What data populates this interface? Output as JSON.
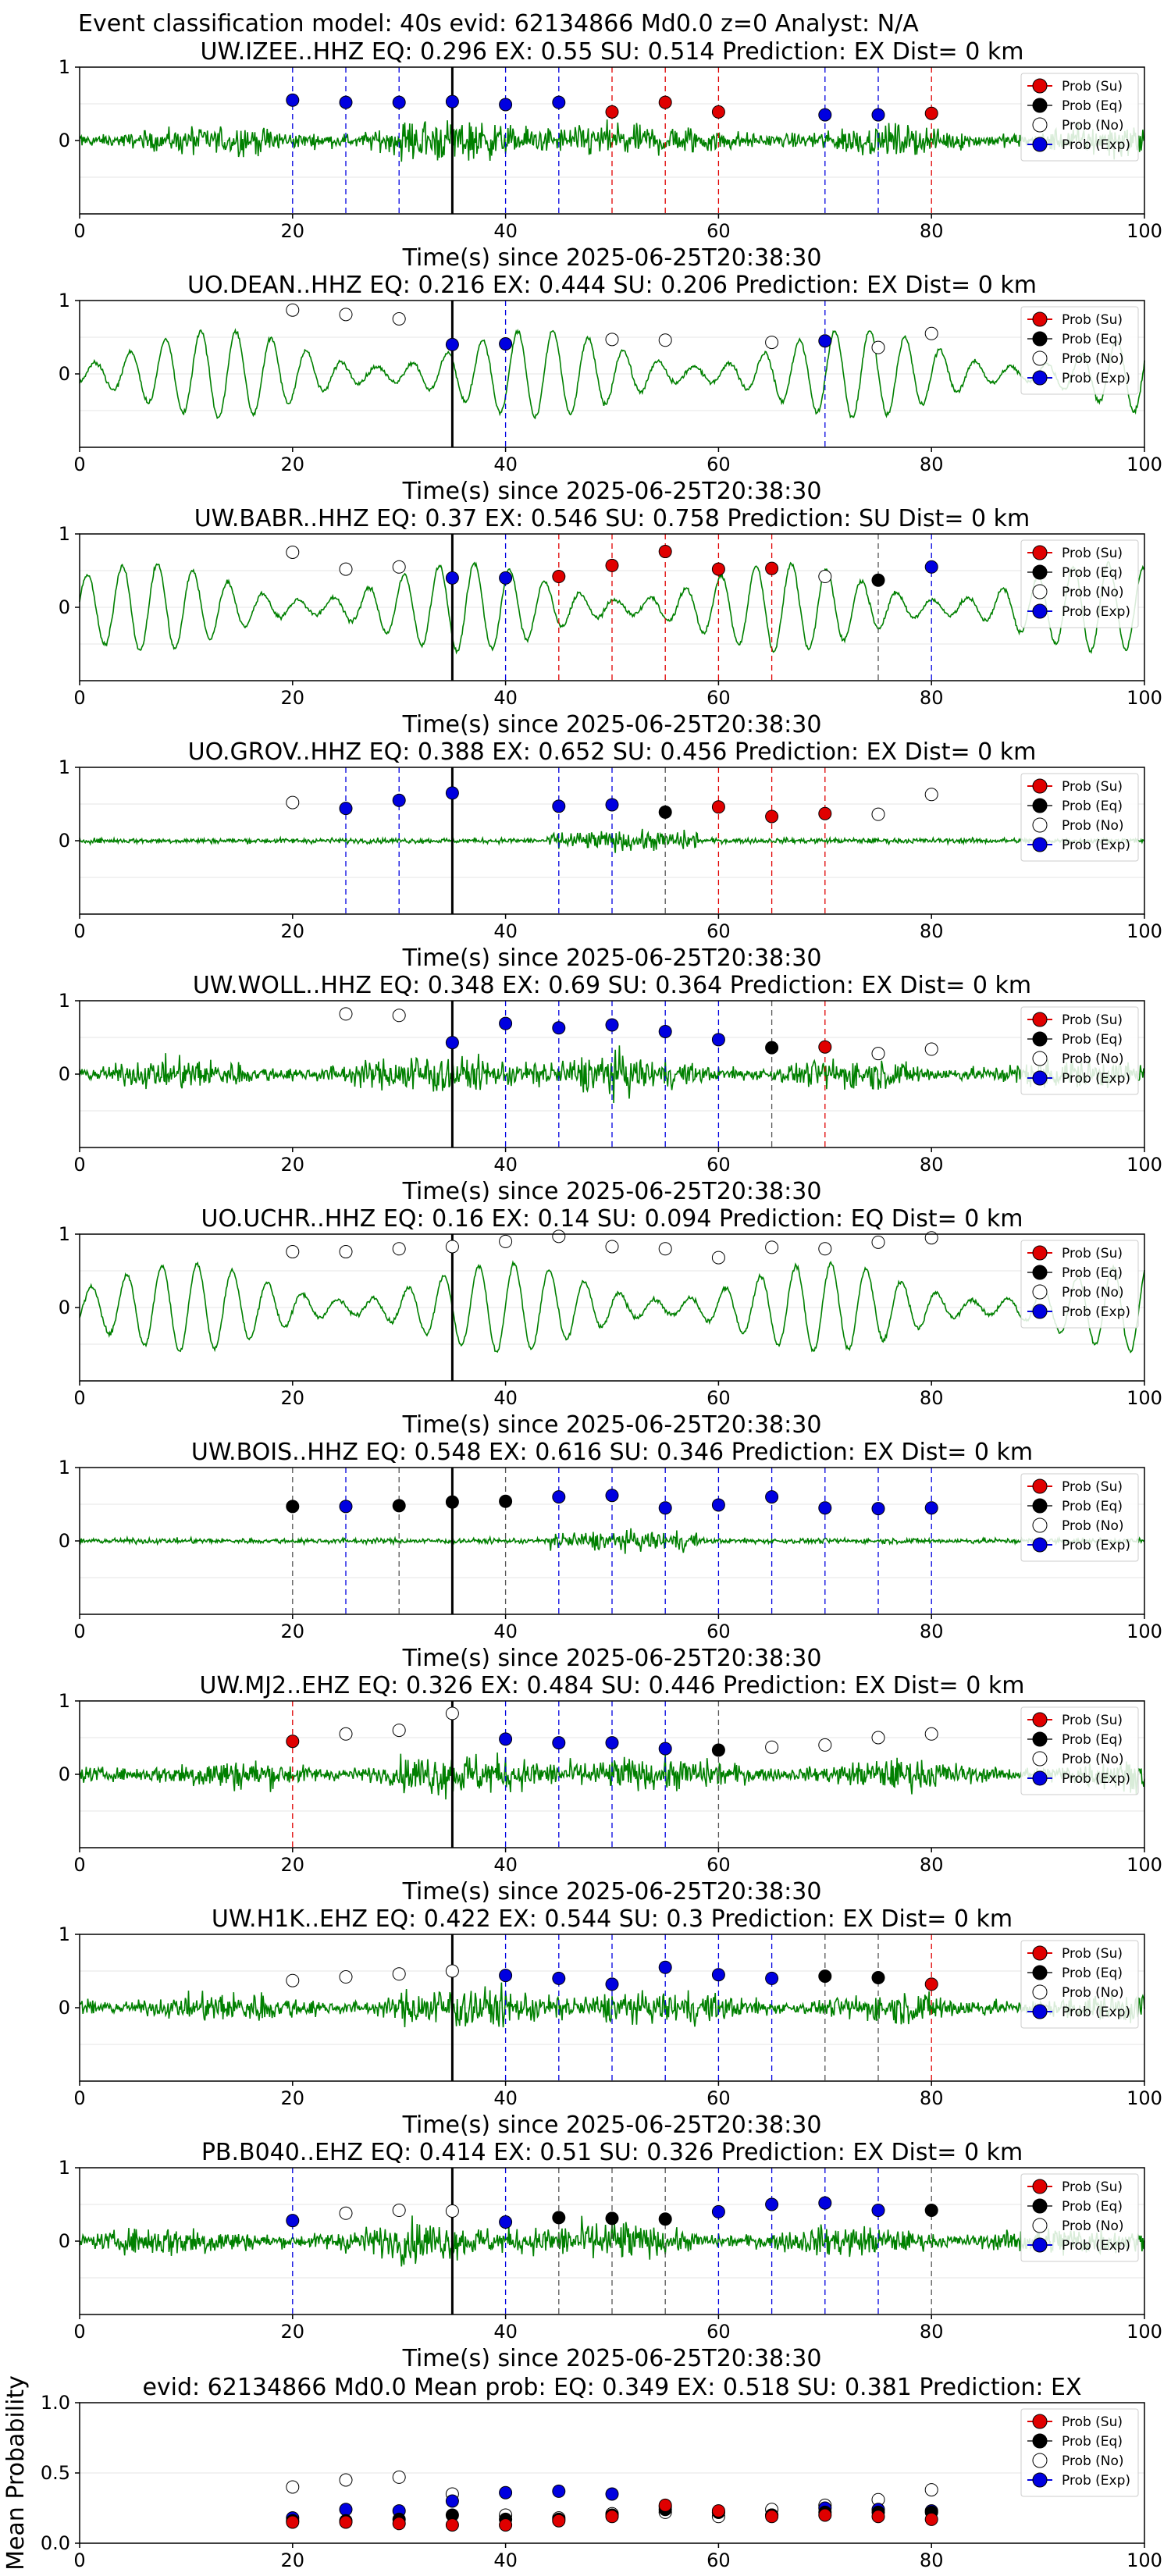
{
  "suptitle": "Event classification model: 40s evid: 62134866 Md0.0 z=0 Analyst: N/A",
  "colors": {
    "su": "#e00000",
    "eq": "#000000",
    "no": "#ffffff",
    "exp": "#0000e0",
    "trace": "#008000"
  },
  "legend": [
    "Prob (Su)",
    "Prob (Eq)",
    "Prob (No)",
    "Prob (Exp)"
  ],
  "chart_data": [
    {
      "type": "line",
      "station": "UW.IZEE..HHZ",
      "title": "UW.IZEE..HHZ   EQ: 0.296   EX: 0.55   SU: 0.514    Prediction: EX     Dist= 0 km",
      "xlabel": "Time(s) since 2025-06-25T20:38:30",
      "xlim": [
        0,
        100
      ],
      "ylim": [
        -1,
        1
      ],
      "xticks": [
        "0",
        "20",
        "40",
        "60",
        "80",
        "100"
      ],
      "yticks": [
        "1",
        "0"
      ],
      "grid": true,
      "legend_position": "top-right",
      "onset_line_x": 35,
      "trace_style": "noisy",
      "points": [
        {
          "x": 20,
          "y": 0.55,
          "cls": "exp"
        },
        {
          "x": 25,
          "y": 0.52,
          "cls": "exp"
        },
        {
          "x": 30,
          "y": 0.52,
          "cls": "exp"
        },
        {
          "x": 35,
          "y": 0.53,
          "cls": "exp"
        },
        {
          "x": 40,
          "y": 0.49,
          "cls": "exp"
        },
        {
          "x": 45,
          "y": 0.52,
          "cls": "exp"
        },
        {
          "x": 50,
          "y": 0.39,
          "cls": "su"
        },
        {
          "x": 55,
          "y": 0.52,
          "cls": "su"
        },
        {
          "x": 60,
          "y": 0.39,
          "cls": "su"
        },
        {
          "x": 70,
          "y": 0.35,
          "cls": "exp"
        },
        {
          "x": 75,
          "y": 0.35,
          "cls": "exp"
        },
        {
          "x": 80,
          "y": 0.37,
          "cls": "su"
        }
      ]
    },
    {
      "type": "line",
      "station": "UO.DEAN..HHZ",
      "title": "UO.DEAN..HHZ   EQ: 0.216   EX: 0.444   SU: 0.206    Prediction: EX     Dist= 0 km",
      "xlabel": "Time(s) since 2025-06-25T20:38:30",
      "xlim": [
        0,
        100
      ],
      "ylim": [
        -1,
        1
      ],
      "xticks": [
        "0",
        "20",
        "40",
        "60",
        "80",
        "100"
      ],
      "yticks": [
        "1",
        "0"
      ],
      "grid": true,
      "legend_position": "top-right",
      "onset_line_x": 35,
      "trace_style": "oscillating",
      "points": [
        {
          "x": 20,
          "y": 0.87,
          "cls": "no"
        },
        {
          "x": 25,
          "y": 0.81,
          "cls": "no"
        },
        {
          "x": 30,
          "y": 0.75,
          "cls": "no"
        },
        {
          "x": 35,
          "y": 0.4,
          "cls": "exp"
        },
        {
          "x": 40,
          "y": 0.41,
          "cls": "exp"
        },
        {
          "x": 50,
          "y": 0.47,
          "cls": "no"
        },
        {
          "x": 55,
          "y": 0.46,
          "cls": "no"
        },
        {
          "x": 65,
          "y": 0.43,
          "cls": "no"
        },
        {
          "x": 70,
          "y": 0.45,
          "cls": "exp"
        },
        {
          "x": 75,
          "y": 0.36,
          "cls": "no"
        },
        {
          "x": 80,
          "y": 0.55,
          "cls": "no"
        }
      ]
    },
    {
      "type": "line",
      "station": "UW.BABR..HHZ",
      "title": "UW.BABR..HHZ   EQ: 0.37   EX: 0.546   SU: 0.758    Prediction: SU     Dist= 0 km",
      "xlabel": "Time(s) since 2025-06-25T20:38:30",
      "xlim": [
        0,
        100
      ],
      "ylim": [
        -1,
        1
      ],
      "xticks": [
        "0",
        "20",
        "40",
        "60",
        "80",
        "100"
      ],
      "yticks": [
        "1",
        "0"
      ],
      "grid": true,
      "legend_position": "top-right",
      "onset_line_x": 35,
      "trace_style": "oscillating",
      "points": [
        {
          "x": 20,
          "y": 0.75,
          "cls": "no"
        },
        {
          "x": 25,
          "y": 0.52,
          "cls": "no"
        },
        {
          "x": 30,
          "y": 0.55,
          "cls": "no"
        },
        {
          "x": 35,
          "y": 0.4,
          "cls": "exp"
        },
        {
          "x": 40,
          "y": 0.4,
          "cls": "exp"
        },
        {
          "x": 45,
          "y": 0.42,
          "cls": "su"
        },
        {
          "x": 50,
          "y": 0.57,
          "cls": "su"
        },
        {
          "x": 55,
          "y": 0.76,
          "cls": "su"
        },
        {
          "x": 60,
          "y": 0.52,
          "cls": "su"
        },
        {
          "x": 65,
          "y": 0.53,
          "cls": "su"
        },
        {
          "x": 70,
          "y": 0.42,
          "cls": "no"
        },
        {
          "x": 75,
          "y": 0.37,
          "cls": "eq"
        },
        {
          "x": 80,
          "y": 0.55,
          "cls": "exp"
        }
      ]
    },
    {
      "type": "line",
      "station": "UO.GROV..HHZ",
      "title": "UO.GROV..HHZ   EQ: 0.388   EX: 0.652   SU: 0.456    Prediction: EX     Dist= 0 km",
      "xlabel": "Time(s) since 2025-06-25T20:38:30",
      "xlim": [
        0,
        100
      ],
      "ylim": [
        -1,
        1
      ],
      "xticks": [
        "0",
        "20",
        "40",
        "60",
        "80",
        "100"
      ],
      "yticks": [
        "1",
        "0"
      ],
      "grid": true,
      "legend_position": "top-right",
      "onset_line_x": 35,
      "trace_style": "quiet",
      "points": [
        {
          "x": 20,
          "y": 0.52,
          "cls": "no"
        },
        {
          "x": 25,
          "y": 0.44,
          "cls": "exp"
        },
        {
          "x": 30,
          "y": 0.55,
          "cls": "exp"
        },
        {
          "x": 35,
          "y": 0.65,
          "cls": "exp"
        },
        {
          "x": 45,
          "y": 0.47,
          "cls": "exp"
        },
        {
          "x": 50,
          "y": 0.49,
          "cls": "exp"
        },
        {
          "x": 55,
          "y": 0.39,
          "cls": "eq"
        },
        {
          "x": 60,
          "y": 0.46,
          "cls": "su"
        },
        {
          "x": 65,
          "y": 0.33,
          "cls": "su"
        },
        {
          "x": 70,
          "y": 0.37,
          "cls": "su"
        },
        {
          "x": 75,
          "y": 0.36,
          "cls": "no"
        },
        {
          "x": 80,
          "y": 0.63,
          "cls": "no"
        }
      ]
    },
    {
      "type": "line",
      "station": "UW.WOLL..HHZ",
      "title": "UW.WOLL..HHZ   EQ: 0.348   EX: 0.69   SU: 0.364    Prediction: EX     Dist= 0 km",
      "xlabel": "Time(s) since 2025-06-25T20:38:30",
      "xlim": [
        0,
        100
      ],
      "ylim": [
        -1,
        1
      ],
      "xticks": [
        "0",
        "20",
        "40",
        "60",
        "80",
        "100"
      ],
      "yticks": [
        "1",
        "0"
      ],
      "grid": true,
      "legend_position": "top-right",
      "onset_line_x": 35,
      "trace_style": "noisy",
      "points": [
        {
          "x": 25,
          "y": 0.82,
          "cls": "no"
        },
        {
          "x": 30,
          "y": 0.8,
          "cls": "no"
        },
        {
          "x": 35,
          "y": 0.43,
          "cls": "exp"
        },
        {
          "x": 40,
          "y": 0.69,
          "cls": "exp"
        },
        {
          "x": 45,
          "y": 0.63,
          "cls": "exp"
        },
        {
          "x": 50,
          "y": 0.67,
          "cls": "exp"
        },
        {
          "x": 55,
          "y": 0.58,
          "cls": "exp"
        },
        {
          "x": 60,
          "y": 0.47,
          "cls": "exp"
        },
        {
          "x": 65,
          "y": 0.36,
          "cls": "eq"
        },
        {
          "x": 70,
          "y": 0.37,
          "cls": "su"
        },
        {
          "x": 75,
          "y": 0.28,
          "cls": "no"
        },
        {
          "x": 80,
          "y": 0.34,
          "cls": "no"
        }
      ]
    },
    {
      "type": "line",
      "station": "UO.UCHR..HHZ",
      "title": "UO.UCHR..HHZ   EQ: 0.16   EX: 0.14   SU: 0.094    Prediction: EQ     Dist= 0 km",
      "xlabel": "Time(s) since 2025-06-25T20:38:30",
      "xlim": [
        0,
        100
      ],
      "ylim": [
        -1,
        1
      ],
      "xticks": [
        "0",
        "20",
        "40",
        "60",
        "80",
        "100"
      ],
      "yticks": [
        "1",
        "0"
      ],
      "grid": true,
      "legend_position": "top-right",
      "onset_line_x": 35,
      "trace_style": "oscillating",
      "points": [
        {
          "x": 20,
          "y": 0.76,
          "cls": "no"
        },
        {
          "x": 25,
          "y": 0.76,
          "cls": "no"
        },
        {
          "x": 30,
          "y": 0.8,
          "cls": "no"
        },
        {
          "x": 35,
          "y": 0.83,
          "cls": "no"
        },
        {
          "x": 40,
          "y": 0.9,
          "cls": "no"
        },
        {
          "x": 45,
          "y": 0.97,
          "cls": "no"
        },
        {
          "x": 50,
          "y": 0.83,
          "cls": "no"
        },
        {
          "x": 55,
          "y": 0.8,
          "cls": "no"
        },
        {
          "x": 60,
          "y": 0.68,
          "cls": "no"
        },
        {
          "x": 65,
          "y": 0.82,
          "cls": "no"
        },
        {
          "x": 70,
          "y": 0.8,
          "cls": "no"
        },
        {
          "x": 75,
          "y": 0.89,
          "cls": "no"
        },
        {
          "x": 80,
          "y": 0.95,
          "cls": "no"
        }
      ]
    },
    {
      "type": "line",
      "station": "UW.BOIS..HHZ",
      "title": "UW.BOIS..HHZ   EQ: 0.548   EX: 0.616   SU: 0.346    Prediction: EX     Dist= 0 km",
      "xlabel": "Time(s) since 2025-06-25T20:38:30",
      "xlim": [
        0,
        100
      ],
      "ylim": [
        -1,
        1
      ],
      "xticks": [
        "0",
        "20",
        "40",
        "60",
        "80",
        "100"
      ],
      "yticks": [
        "1",
        "0"
      ],
      "grid": true,
      "legend_position": "top-right",
      "onset_line_x": 35,
      "trace_style": "quiet",
      "points": [
        {
          "x": 20,
          "y": 0.47,
          "cls": "eq"
        },
        {
          "x": 25,
          "y": 0.47,
          "cls": "exp"
        },
        {
          "x": 30,
          "y": 0.48,
          "cls": "eq"
        },
        {
          "x": 35,
          "y": 0.53,
          "cls": "eq"
        },
        {
          "x": 40,
          "y": 0.54,
          "cls": "eq"
        },
        {
          "x": 45,
          "y": 0.6,
          "cls": "exp"
        },
        {
          "x": 50,
          "y": 0.62,
          "cls": "exp"
        },
        {
          "x": 55,
          "y": 0.45,
          "cls": "exp"
        },
        {
          "x": 60,
          "y": 0.49,
          "cls": "exp"
        },
        {
          "x": 65,
          "y": 0.6,
          "cls": "exp"
        },
        {
          "x": 70,
          "y": 0.45,
          "cls": "exp"
        },
        {
          "x": 75,
          "y": 0.44,
          "cls": "exp"
        },
        {
          "x": 80,
          "y": 0.45,
          "cls": "exp"
        }
      ]
    },
    {
      "type": "line",
      "station": "UW.MJ2..EHZ",
      "title": "UW.MJ2..EHZ   EQ: 0.326   EX: 0.484   SU: 0.446    Prediction: EX     Dist= 0 km",
      "xlabel": "Time(s) since 2025-06-25T20:38:30",
      "xlim": [
        0,
        100
      ],
      "ylim": [
        -1,
        1
      ],
      "xticks": [
        "0",
        "20",
        "40",
        "60",
        "80",
        "100"
      ],
      "yticks": [
        "1",
        "0"
      ],
      "grid": true,
      "legend_position": "top-right",
      "onset_line_x": 35,
      "trace_style": "noisy",
      "points": [
        {
          "x": 20,
          "y": 0.45,
          "cls": "su"
        },
        {
          "x": 25,
          "y": 0.55,
          "cls": "no"
        },
        {
          "x": 30,
          "y": 0.6,
          "cls": "no"
        },
        {
          "x": 35,
          "y": 0.83,
          "cls": "no"
        },
        {
          "x": 40,
          "y": 0.48,
          "cls": "exp"
        },
        {
          "x": 45,
          "y": 0.43,
          "cls": "exp"
        },
        {
          "x": 50,
          "y": 0.43,
          "cls": "exp"
        },
        {
          "x": 55,
          "y": 0.35,
          "cls": "exp"
        },
        {
          "x": 60,
          "y": 0.33,
          "cls": "eq"
        },
        {
          "x": 65,
          "y": 0.37,
          "cls": "no"
        },
        {
          "x": 70,
          "y": 0.4,
          "cls": "no"
        },
        {
          "x": 75,
          "y": 0.5,
          "cls": "no"
        },
        {
          "x": 80,
          "y": 0.55,
          "cls": "no"
        }
      ]
    },
    {
      "type": "line",
      "station": "UW.H1K..EHZ",
      "title": "UW.H1K..EHZ   EQ: 0.422   EX: 0.544   SU: 0.3    Prediction: EX     Dist= 0 km",
      "xlabel": "Time(s) since 2025-06-25T20:38:30",
      "xlim": [
        0,
        100
      ],
      "ylim": [
        -1,
        1
      ],
      "xticks": [
        "0",
        "20",
        "40",
        "60",
        "80",
        "100"
      ],
      "yticks": [
        "1",
        "0"
      ],
      "grid": true,
      "legend_position": "top-right",
      "onset_line_x": 35,
      "trace_style": "noisy",
      "points": [
        {
          "x": 20,
          "y": 0.37,
          "cls": "no"
        },
        {
          "x": 25,
          "y": 0.42,
          "cls": "no"
        },
        {
          "x": 30,
          "y": 0.46,
          "cls": "no"
        },
        {
          "x": 35,
          "y": 0.5,
          "cls": "no"
        },
        {
          "x": 40,
          "y": 0.44,
          "cls": "exp"
        },
        {
          "x": 45,
          "y": 0.4,
          "cls": "exp"
        },
        {
          "x": 50,
          "y": 0.32,
          "cls": "exp"
        },
        {
          "x": 55,
          "y": 0.55,
          "cls": "exp"
        },
        {
          "x": 60,
          "y": 0.45,
          "cls": "exp"
        },
        {
          "x": 65,
          "y": 0.4,
          "cls": "exp"
        },
        {
          "x": 70,
          "y": 0.43,
          "cls": "eq"
        },
        {
          "x": 75,
          "y": 0.41,
          "cls": "eq"
        },
        {
          "x": 80,
          "y": 0.32,
          "cls": "su"
        }
      ]
    },
    {
      "type": "line",
      "station": "PB.B040..EHZ",
      "title": "PB.B040..EHZ   EQ: 0.414   EX: 0.51   SU: 0.326    Prediction: EX     Dist= 0 km",
      "xlabel": "Time(s) since 2025-06-25T20:38:30",
      "xlim": [
        0,
        100
      ],
      "ylim": [
        -1,
        1
      ],
      "xticks": [
        "0",
        "20",
        "40",
        "60",
        "80",
        "100"
      ],
      "yticks": [
        "1",
        "0"
      ],
      "grid": true,
      "legend_position": "top-right",
      "onset_line_x": 35,
      "trace_style": "noisy",
      "points": [
        {
          "x": 20,
          "y": 0.28,
          "cls": "exp"
        },
        {
          "x": 25,
          "y": 0.38,
          "cls": "no"
        },
        {
          "x": 30,
          "y": 0.42,
          "cls": "no"
        },
        {
          "x": 35,
          "y": 0.41,
          "cls": "no"
        },
        {
          "x": 40,
          "y": 0.26,
          "cls": "exp"
        },
        {
          "x": 45,
          "y": 0.32,
          "cls": "eq"
        },
        {
          "x": 50,
          "y": 0.31,
          "cls": "eq"
        },
        {
          "x": 55,
          "y": 0.3,
          "cls": "eq"
        },
        {
          "x": 60,
          "y": 0.4,
          "cls": "exp"
        },
        {
          "x": 65,
          "y": 0.5,
          "cls": "exp"
        },
        {
          "x": 70,
          "y": 0.52,
          "cls": "exp"
        },
        {
          "x": 75,
          "y": 0.42,
          "cls": "exp"
        },
        {
          "x": 80,
          "y": 0.42,
          "cls": "eq"
        }
      ]
    },
    {
      "type": "scatter",
      "title": "evid: 62134866   Md0.0    Mean prob:    EQ: 0.349  EX: 0.518  SU: 0.381    Prediction: EX",
      "ylabel": "Mean Probability",
      "xlim": [
        0,
        100
      ],
      "ylim": [
        0,
        1
      ],
      "xticks": [
        "0",
        "20",
        "40",
        "60",
        "80",
        "100"
      ],
      "yticks": [
        "1.0",
        "0.5",
        "0.0"
      ],
      "grid": true,
      "legend_position": "top-right",
      "x": [
        20,
        25,
        30,
        35,
        40,
        45,
        50,
        55,
        60,
        65,
        70,
        75,
        80
      ],
      "series": [
        {
          "name": "Prob (No)",
          "cls": "no",
          "values": [
            0.4,
            0.45,
            0.47,
            0.35,
            0.2,
            0.18,
            0.21,
            0.22,
            0.19,
            0.24,
            0.27,
            0.31,
            0.38
          ]
        },
        {
          "name": "Prob (Exp)",
          "cls": "exp",
          "values": [
            0.18,
            0.24,
            0.23,
            0.3,
            0.36,
            0.37,
            0.35,
            0.26,
            0.22,
            0.2,
            0.25,
            0.24,
            0.23
          ]
        },
        {
          "name": "Prob (Eq)",
          "cls": "eq",
          "values": [
            0.16,
            0.16,
            0.17,
            0.2,
            0.17,
            0.17,
            0.2,
            0.24,
            0.22,
            0.2,
            0.22,
            0.22,
            0.22
          ]
        },
        {
          "name": "Prob (Su)",
          "cls": "su",
          "values": [
            0.15,
            0.15,
            0.14,
            0.13,
            0.13,
            0.16,
            0.19,
            0.27,
            0.23,
            0.19,
            0.2,
            0.19,
            0.17
          ]
        }
      ]
    }
  ]
}
